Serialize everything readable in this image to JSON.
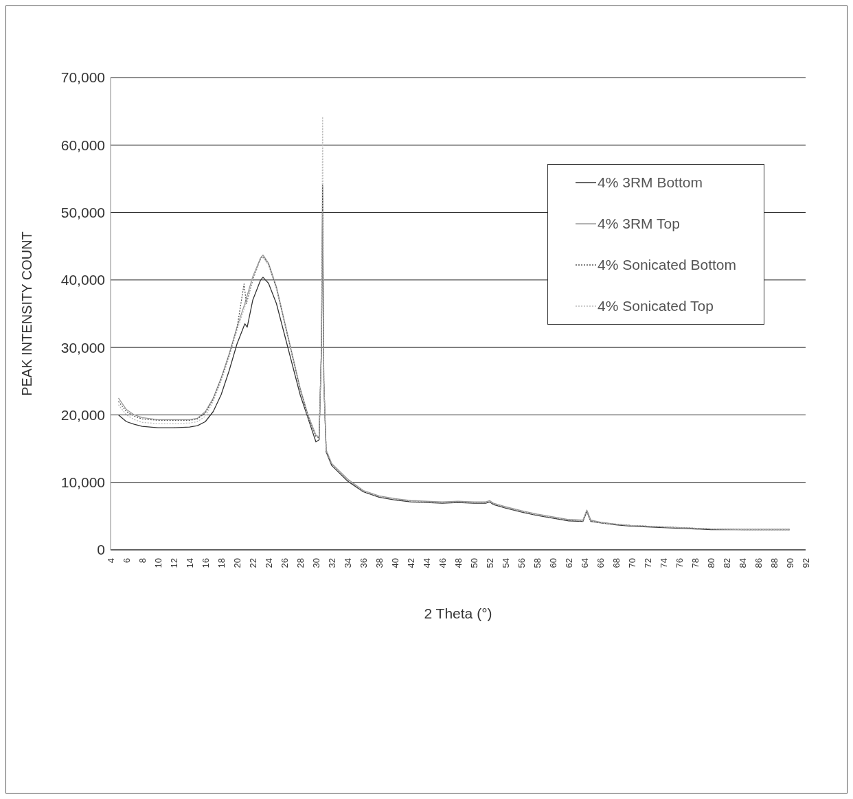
{
  "chart_data": {
    "type": "line",
    "xlabel": "2 Theta (°)",
    "ylabel": "PEAK INTENSITY COUNT",
    "xlim": [
      4,
      92
    ],
    "xticks": [
      4,
      6,
      8,
      10,
      12,
      14,
      16,
      18,
      20,
      22,
      24,
      26,
      28,
      30,
      32,
      34,
      36,
      38,
      40,
      42,
      44,
      46,
      48,
      50,
      52,
      54,
      56,
      58,
      60,
      62,
      64,
      66,
      68,
      70,
      72,
      74,
      76,
      78,
      80,
      82,
      84,
      86,
      88,
      90,
      92
    ],
    "ylim": [
      0,
      70000
    ],
    "yticks": [
      {
        "value": 0,
        "label": "0"
      },
      {
        "value": 10000,
        "label": "10,000"
      },
      {
        "value": 20000,
        "label": "20,000"
      },
      {
        "value": 30000,
        "label": "30,000"
      },
      {
        "value": 40000,
        "label": "40,000"
      },
      {
        "value": 50000,
        "label": "50,000"
      },
      {
        "value": 60000,
        "label": "60,000"
      },
      {
        "value": 70000,
        "label": "70,000"
      }
    ],
    "grid": "y",
    "legend": "top right",
    "marker": "none",
    "series": [
      {
        "name": "4% 3RM Bottom",
        "color": "#333333",
        "line_style": "solid",
        "x": [
          5,
          6,
          7,
          8,
          10,
          12,
          14,
          15,
          16,
          17,
          18,
          19,
          20,
          21,
          21.3,
          22,
          23,
          23.3,
          24,
          25,
          26,
          27,
          28,
          29,
          30,
          30.4,
          30.7,
          30.85,
          31,
          31.3,
          32,
          34,
          36,
          38,
          40,
          42,
          44,
          46,
          48,
          50,
          51.5,
          52,
          52.5,
          54,
          56,
          58,
          60,
          62,
          63.8,
          64.3,
          64.8,
          66,
          68,
          70,
          72,
          74,
          76,
          78,
          80,
          84,
          88,
          90
        ],
        "values": [
          20000,
          19000,
          18600,
          18300,
          18100,
          18100,
          18200,
          18400,
          19000,
          20500,
          23000,
          26500,
          30500,
          33500,
          33000,
          37000,
          40000,
          40400,
          39500,
          36500,
          32000,
          27500,
          23000,
          19500,
          16000,
          16300,
          30000,
          54000,
          25000,
          14500,
          12500,
          10200,
          8600,
          7800,
          7400,
          7100,
          7000,
          6900,
          7000,
          6900,
          6900,
          7100,
          6700,
          6200,
          5600,
          5100,
          4700,
          4300,
          4200,
          5700,
          4200,
          4000,
          3700,
          3500,
          3400,
          3300,
          3200,
          3100,
          3000,
          3000,
          3000,
          3000
        ]
      },
      {
        "name": "4% 3RM Top",
        "color": "#999999",
        "line_style": "solid",
        "x": [
          5,
          6,
          7,
          8,
          10,
          12,
          14,
          15,
          16,
          17,
          18,
          19,
          20,
          21,
          22,
          23,
          23.3,
          24,
          25,
          26,
          27,
          28,
          29,
          30,
          30.4,
          30.7,
          30.85,
          31,
          31.3,
          32,
          34,
          36,
          38,
          40,
          42,
          44,
          46,
          48,
          50,
          51.5,
          52,
          52.5,
          54,
          56,
          58,
          60,
          62,
          63.8,
          64.3,
          64.8,
          66,
          68,
          70,
          72,
          74,
          76,
          78,
          80,
          84,
          88,
          90
        ],
        "values": [
          22500,
          20800,
          20000,
          19600,
          19300,
          19300,
          19300,
          19500,
          20500,
          22500,
          25500,
          29000,
          33000,
          36500,
          40500,
          43300,
          43700,
          42500,
          39000,
          34000,
          29000,
          24000,
          20000,
          17000,
          16700,
          30000,
          50000,
          25000,
          14800,
          12800,
          10500,
          8800,
          8000,
          7600,
          7300,
          7200,
          7100,
          7200,
          7100,
          7100,
          7300,
          6900,
          6400,
          5800,
          5300,
          4900,
          4500,
          4400,
          5900,
          4400,
          4100,
          3800,
          3600,
          3500,
          3400,
          3300,
          3200,
          3100,
          3000,
          3000,
          3000
        ]
      },
      {
        "name": "4% Sonicated Bottom",
        "color": "#555555",
        "line_style": "dotted",
        "x": [
          5,
          6,
          7,
          8,
          10,
          12,
          14,
          15,
          16,
          17,
          18,
          19,
          20,
          20.9,
          21.2,
          22,
          23,
          23.3,
          24,
          25,
          26,
          27,
          28,
          29,
          30,
          30.4,
          30.7,
          30.85,
          31,
          31.3,
          32,
          34,
          36,
          38,
          40,
          42,
          44,
          46,
          48,
          50,
          51.5,
          52,
          52.5,
          54,
          56,
          58,
          60,
          62,
          63.8,
          64.3,
          64.8,
          66,
          68,
          70,
          72,
          74,
          76,
          78,
          80,
          84,
          88,
          90
        ],
        "values": [
          22000,
          20500,
          19800,
          19400,
          19200,
          19200,
          19200,
          19400,
          20300,
          22300,
          25300,
          28800,
          32800,
          39400,
          36500,
          40000,
          43200,
          43500,
          42300,
          38800,
          33800,
          28800,
          23800,
          19800,
          16800,
          16600,
          30000,
          52000,
          25000,
          14700,
          12700,
          10400,
          8700,
          7900,
          7500,
          7200,
          7100,
          7000,
          7100,
          7000,
          7000,
          7200,
          6800,
          6300,
          5700,
          5200,
          4800,
          4400,
          4300,
          5800,
          4300,
          4000,
          3800,
          3600,
          3500,
          3400,
          3300,
          3200,
          3100,
          3000,
          3000,
          3000
        ]
      },
      {
        "name": "4% Sonicated Top",
        "color": "#bbbbbb",
        "line_style": "dotted",
        "x": [
          5,
          6,
          7,
          8,
          10,
          12,
          14,
          15,
          16,
          17,
          18,
          19,
          20,
          21,
          22,
          23,
          23.3,
          24,
          25,
          26,
          27,
          28,
          29,
          30,
          30.4,
          30.7,
          30.85,
          31,
          31.3,
          32,
          34,
          36,
          38,
          40,
          42,
          44,
          46,
          48,
          50,
          51.5,
          52,
          52.5,
          54,
          56,
          58,
          60,
          62,
          63.8,
          64.3,
          64.8,
          66,
          68,
          70,
          72,
          74,
          76,
          78,
          80,
          84,
          88,
          90
        ],
        "values": [
          21500,
          20000,
          19300,
          18900,
          18700,
          18700,
          18800,
          19000,
          19800,
          22000,
          25000,
          28500,
          32500,
          36000,
          40200,
          43000,
          43400,
          42200,
          38700,
          33700,
          28700,
          23700,
          19700,
          16900,
          16700,
          30000,
          64200,
          25000,
          14700,
          12700,
          10400,
          8700,
          7900,
          7500,
          7200,
          7100,
          7000,
          7100,
          7000,
          7000,
          7200,
          6800,
          6300,
          5700,
          5200,
          4800,
          4400,
          4300,
          5800,
          4300,
          4000,
          3800,
          3600,
          3500,
          3400,
          3300,
          3200,
          3100,
          3000,
          3000,
          3000
        ]
      }
    ]
  }
}
